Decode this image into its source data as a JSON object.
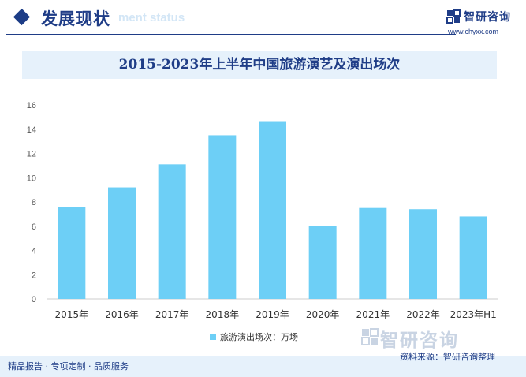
{
  "header": {
    "section_title": "发展现状",
    "section_ghost": "ment status",
    "brand_name": "智研咨询",
    "brand_url": "www.chyxx.com"
  },
  "chart_data": {
    "type": "bar",
    "title": "2015-2023年上半年中国旅游演艺及演出场次",
    "categories": [
      "2015年",
      "2016年",
      "2017年",
      "2018年",
      "2019年",
      "2020年",
      "2021年",
      "2022年",
      "2023年H1"
    ],
    "series": [
      {
        "name": "旅游演出场次：万场",
        "values": [
          7.6,
          9.2,
          11.1,
          13.5,
          14.6,
          6.0,
          7.5,
          7.4,
          6.8
        ]
      }
    ],
    "ylim": [
      0,
      16
    ],
    "yticks": [
      0,
      2,
      4,
      6,
      8,
      10,
      12,
      14,
      16
    ],
    "grid": false,
    "legend_position": "bottom",
    "bar_color": "#6dcff6"
  },
  "footer": {
    "left_text": "精品报告 · 专项定制 · 品质服务",
    "source_text": "资料来源：智研咨询整理",
    "brand_name": "智研咨询"
  },
  "colors": {
    "accent": "#1f3d87",
    "band": "#e6f1fb",
    "bar": "#6dcff6"
  }
}
